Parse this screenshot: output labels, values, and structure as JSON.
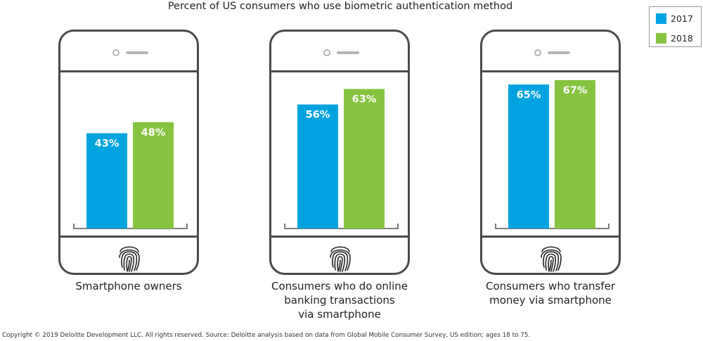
{
  "chart_data": {
    "type": "bar",
    "title": "Percent of US consumers who use biometric authentication method",
    "categories": [
      "Smartphone owners",
      "Consumers who do online banking transactions via smartphone",
      "Consumers who transfer money via smartphone"
    ],
    "category_lines": [
      [
        "Smartphone owners"
      ],
      [
        "Consumers who do online",
        "banking transactions",
        "via smartphone"
      ],
      [
        "Consumers who transfer",
        "money via smartphone"
      ]
    ],
    "series": [
      {
        "name": "2017",
        "color": "#00a3e0",
        "values": [
          43,
          56,
          65
        ]
      },
      {
        "name": "2018",
        "color": "#86c440",
        "values": [
          48,
          63,
          67
        ]
      }
    ],
    "data_labels": [
      [
        "43%",
        "56%",
        "65%"
      ],
      [
        "48%",
        "63%",
        "67%"
      ]
    ],
    "ylim": [
      0,
      100
    ],
    "legend": "top-right",
    "grid": false
  },
  "footer": "Copyright © 2019 Deloitte Development LLC. All rights reserved. Source: Deloitte analysis based on data from Global Mobile Consumer Survey, US edition; ages 18 to 75."
}
